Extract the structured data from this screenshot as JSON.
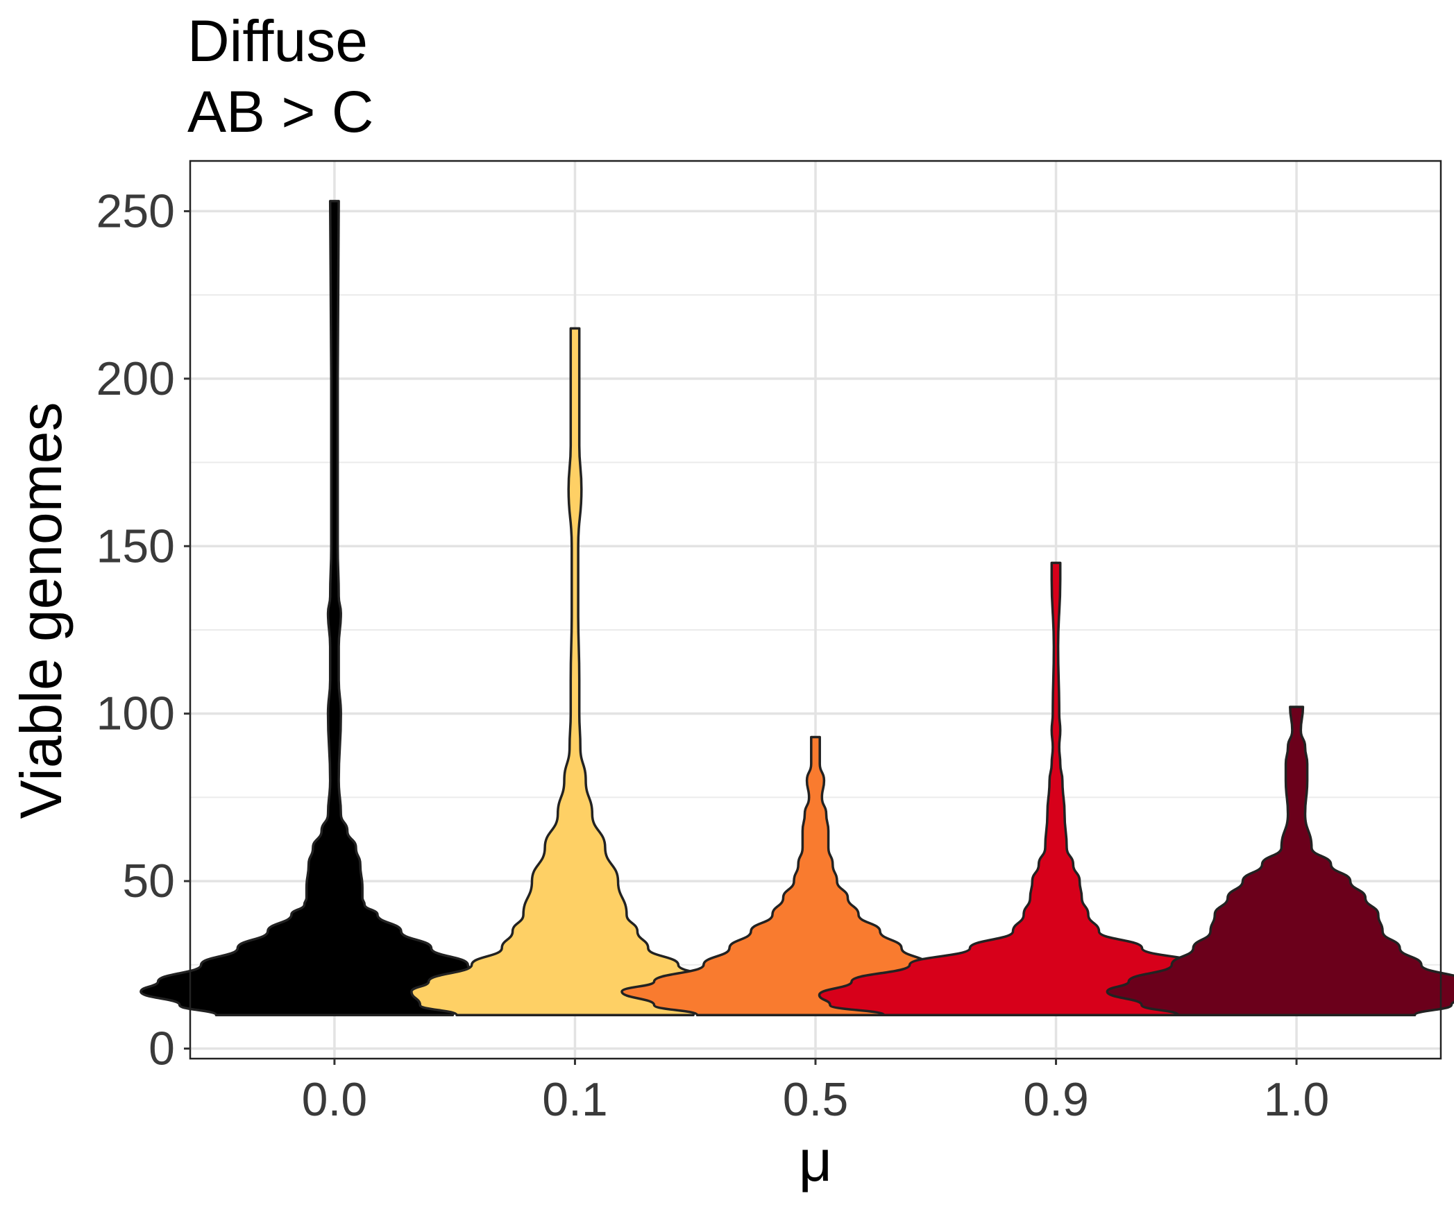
{
  "chart_data": {
    "type": "violin",
    "title": "Diffuse",
    "subtitle": "AB > C",
    "xlabel": "μ",
    "ylabel": "Viable genomes",
    "categories": [
      "0.0",
      "0.1",
      "0.5",
      "0.9",
      "1.0"
    ],
    "ylim": [
      -3,
      265
    ],
    "yticks": [
      0,
      50,
      100,
      150,
      200,
      250
    ],
    "ytick_labels": [
      "0",
      "50",
      "100",
      "150",
      "200",
      "250"
    ],
    "grid": true,
    "violins": [
      {
        "category": "0.0",
        "color": "#000000",
        "profile": [
          [
            10,
            0.55
          ],
          [
            13,
            0.72
          ],
          [
            17,
            0.9
          ],
          [
            20,
            0.82
          ],
          [
            25,
            0.62
          ],
          [
            30,
            0.45
          ],
          [
            35,
            0.31
          ],
          [
            40,
            0.2
          ],
          [
            43,
            0.14
          ],
          [
            45,
            0.13
          ],
          [
            48,
            0.13
          ],
          [
            55,
            0.12
          ],
          [
            60,
            0.1
          ],
          [
            65,
            0.06
          ],
          [
            70,
            0.03
          ],
          [
            80,
            0.02
          ],
          [
            100,
            0.03
          ],
          [
            110,
            0.02
          ],
          [
            120,
            0.02
          ],
          [
            130,
            0.03
          ],
          [
            135,
            0.02
          ],
          [
            150,
            0.015
          ],
          [
            200,
            0.015
          ],
          [
            253,
            0.02
          ]
        ]
      },
      {
        "category": "0.1",
        "color": "#FED065",
        "profile": [
          [
            10,
            0.55
          ],
          [
            13,
            0.72
          ],
          [
            17,
            0.76
          ],
          [
            20,
            0.68
          ],
          [
            25,
            0.48
          ],
          [
            30,
            0.34
          ],
          [
            35,
            0.29
          ],
          [
            40,
            0.24
          ],
          [
            50,
            0.2
          ],
          [
            60,
            0.14
          ],
          [
            70,
            0.08
          ],
          [
            80,
            0.05
          ],
          [
            90,
            0.025
          ],
          [
            100,
            0.02
          ],
          [
            110,
            0.02
          ],
          [
            130,
            0.015
          ],
          [
            150,
            0.015
          ],
          [
            167,
            0.03
          ],
          [
            180,
            0.02
          ],
          [
            200,
            0.02
          ],
          [
            215,
            0.02
          ]
        ]
      },
      {
        "category": "0.5",
        "color": "#F97B2F",
        "profile": [
          [
            10,
            0.55
          ],
          [
            13,
            0.75
          ],
          [
            17,
            0.9
          ],
          [
            20,
            0.75
          ],
          [
            25,
            0.52
          ],
          [
            30,
            0.4
          ],
          [
            35,
            0.3
          ],
          [
            40,
            0.2
          ],
          [
            45,
            0.15
          ],
          [
            50,
            0.1
          ],
          [
            55,
            0.08
          ],
          [
            60,
            0.06
          ],
          [
            65,
            0.06
          ],
          [
            70,
            0.05
          ],
          [
            75,
            0.03
          ],
          [
            80,
            0.04
          ],
          [
            85,
            0.02
          ],
          [
            93,
            0.02
          ]
        ]
      },
      {
        "category": "0.9",
        "color": "#D7001A",
        "profile": [
          [
            10,
            0.8
          ],
          [
            13,
            1.05
          ],
          [
            16,
            1.1
          ],
          [
            20,
            0.95
          ],
          [
            25,
            0.68
          ],
          [
            30,
            0.4
          ],
          [
            35,
            0.2
          ],
          [
            40,
            0.15
          ],
          [
            45,
            0.12
          ],
          [
            50,
            0.11
          ],
          [
            55,
            0.08
          ],
          [
            60,
            0.05
          ],
          [
            70,
            0.04
          ],
          [
            80,
            0.03
          ],
          [
            85,
            0.02
          ],
          [
            90,
            0.015
          ],
          [
            95,
            0.02
          ],
          [
            100,
            0.015
          ],
          [
            120,
            0.01
          ],
          [
            140,
            0.02
          ],
          [
            145,
            0.02
          ]
        ]
      },
      {
        "category": "1.0",
        "color": "#6B001B",
        "profile": [
          [
            10,
            0.55
          ],
          [
            13,
            0.72
          ],
          [
            17,
            0.88
          ],
          [
            20,
            0.78
          ],
          [
            25,
            0.58
          ],
          [
            30,
            0.48
          ],
          [
            35,
            0.4
          ],
          [
            40,
            0.38
          ],
          [
            45,
            0.32
          ],
          [
            50,
            0.25
          ],
          [
            55,
            0.16
          ],
          [
            60,
            0.07
          ],
          [
            70,
            0.04
          ],
          [
            80,
            0.05
          ],
          [
            85,
            0.05
          ],
          [
            90,
            0.04
          ],
          [
            95,
            0.02
          ],
          [
            102,
            0.03
          ]
        ]
      }
    ]
  }
}
